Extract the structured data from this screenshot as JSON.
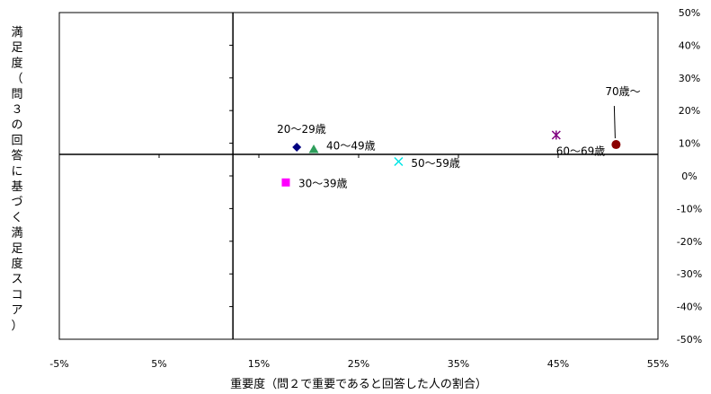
{
  "chart_data": {
    "type": "scatter",
    "title": "",
    "xlabel": "重要度（問２で重要であると回答した人の割合）",
    "ylabel": "満足度（問３の回答に基づく満足度スコア）",
    "xlim": [
      -5,
      55
    ],
    "ylim": [
      -50,
      50
    ],
    "x_ticks": [
      -5,
      5,
      15,
      25,
      35,
      45,
      55
    ],
    "y_ticks": [
      50,
      40,
      30,
      20,
      10,
      0,
      -10,
      -20,
      -30,
      -40,
      -50
    ],
    "x_tick_labels": [
      "-5%",
      "5%",
      "15%",
      "25%",
      "35%",
      "45%",
      "55%"
    ],
    "y_tick_labels": [
      "50%",
      "40%",
      "30%",
      "20%",
      "10%",
      "0%",
      "-10%",
      "-20%",
      "-30%",
      "-40%",
      "-50%"
    ],
    "y_axis_position": "right",
    "crosshair": {
      "x": 12.4,
      "y": 6.6
    },
    "grid": false,
    "points": [
      {
        "label": "20～29歳",
        "x": 18.8,
        "y": 8.8,
        "marker": "diamond",
        "color": "#000080"
      },
      {
        "label": "30～39歳",
        "x": 17.7,
        "y": -2.0,
        "marker": "square",
        "color": "#ff00ff"
      },
      {
        "label": "40～49歳",
        "x": 20.5,
        "y": 8.1,
        "marker": "triangle",
        "color": "#2e9e5b"
      },
      {
        "label": "50～59歳",
        "x": 29.0,
        "y": 4.4,
        "marker": "x",
        "color": "#00e5e5"
      },
      {
        "label": "60～69歳",
        "x": 44.8,
        "y": 12.5,
        "marker": "star",
        "color": "#800080"
      },
      {
        "label": "70歳～",
        "x": 50.8,
        "y": 9.6,
        "marker": "circle",
        "color": "#8b0000"
      }
    ]
  }
}
